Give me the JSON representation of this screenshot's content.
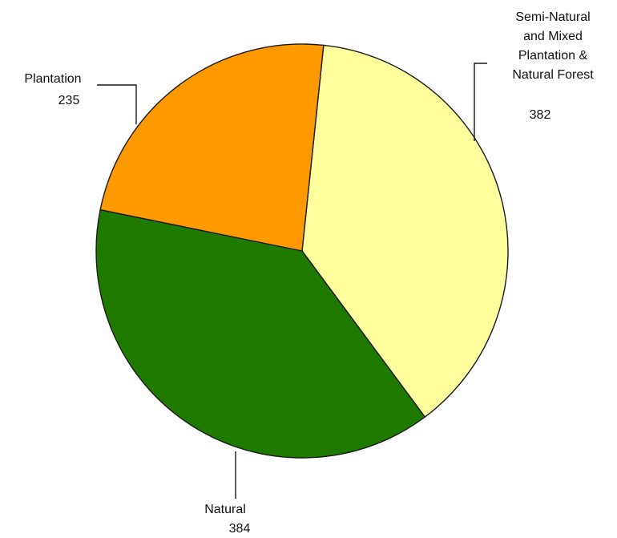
{
  "chart_data": {
    "type": "pie",
    "title": "",
    "slices": [
      {
        "name_lines": [
          "Semi-Natural",
          "and Mixed",
          "Plantation &",
          "Natural Forest"
        ],
        "value": 382,
        "value_label": "382",
        "color": "#ffff9e"
      },
      {
        "name_lines": [
          "Natural"
        ],
        "value": 384,
        "value_label": "384",
        "color": "#1f7a00"
      },
      {
        "name_lines": [
          "Plantation"
        ],
        "value": 235,
        "value_label": "235",
        "color": "#ff9900"
      }
    ],
    "legend": "none"
  }
}
